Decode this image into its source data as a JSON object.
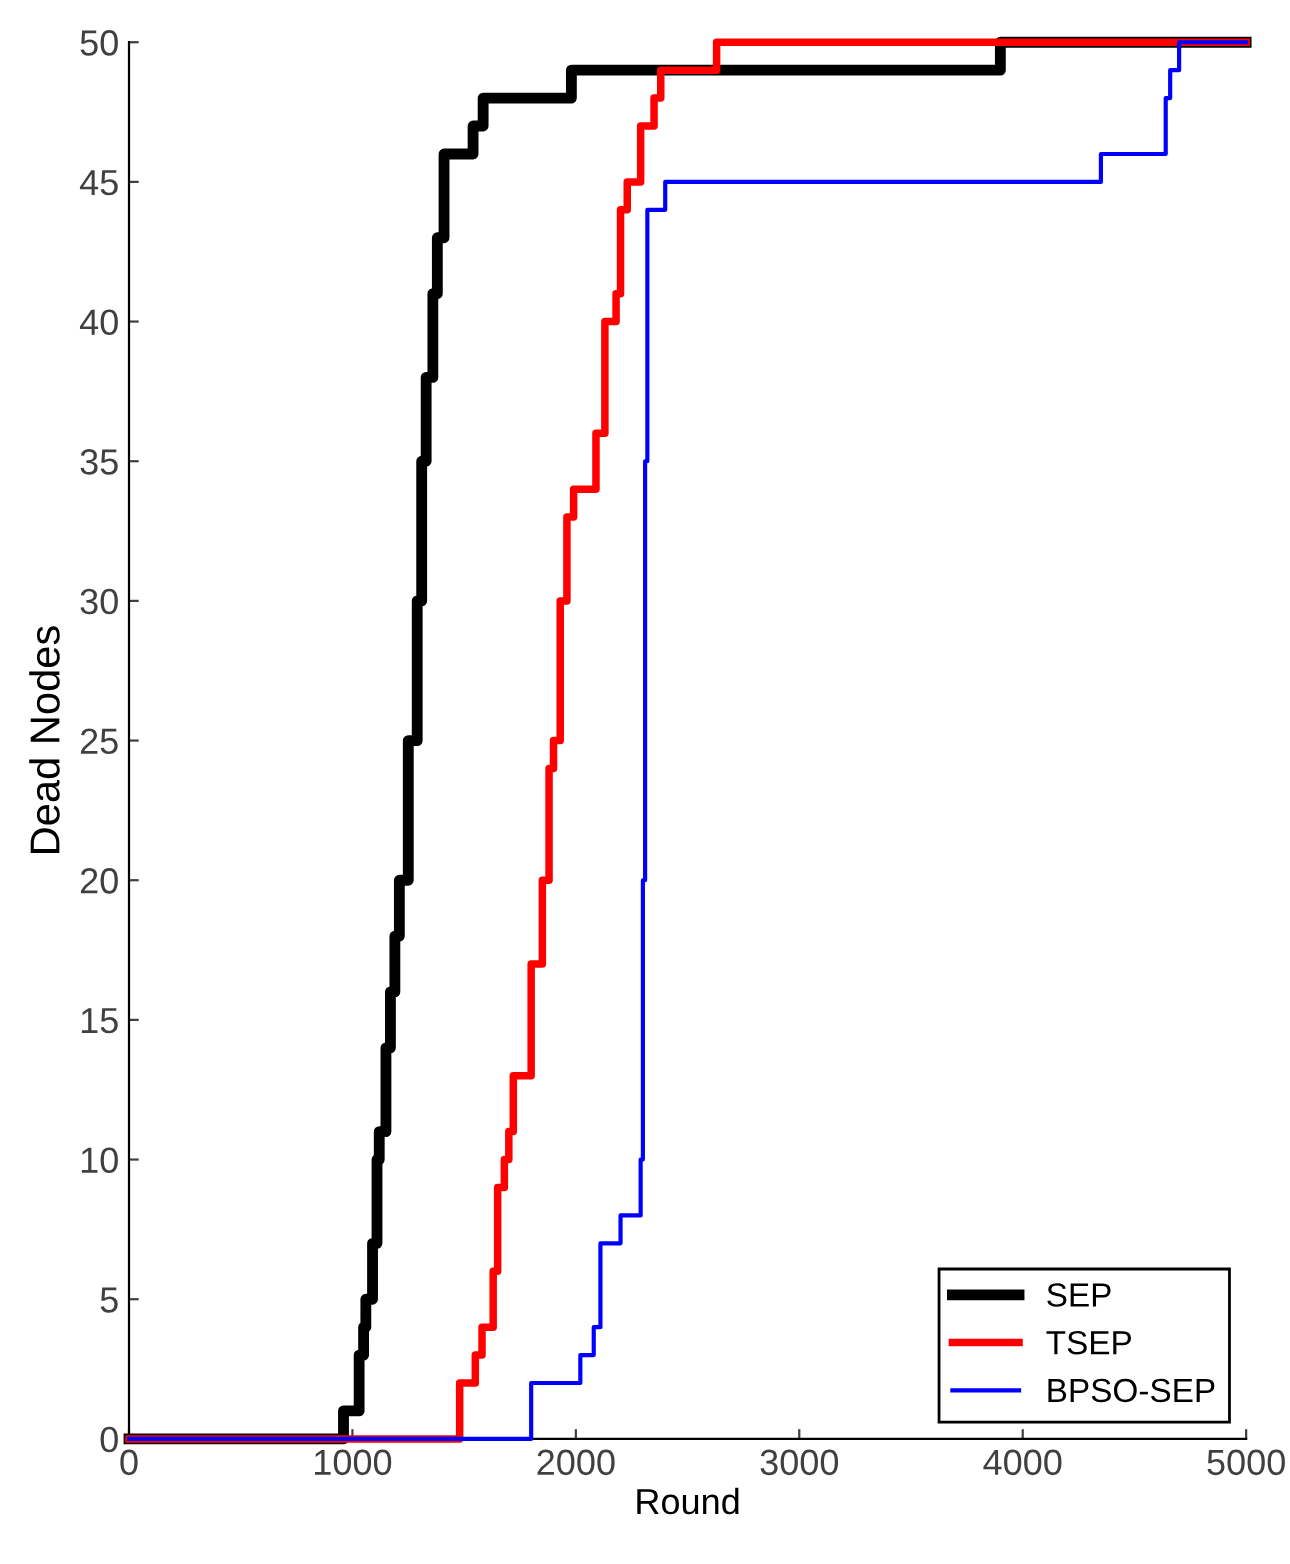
{
  "chart_data": {
    "type": "step",
    "xlabel": "Round",
    "ylabel": "Dead Nodes",
    "xlim": [
      0,
      5000
    ],
    "ylim": [
      0,
      50
    ],
    "xticks": [
      0,
      1000,
      2000,
      3000,
      4000,
      5000
    ],
    "yticks": [
      0,
      5,
      10,
      15,
      20,
      25,
      30,
      35,
      40,
      45,
      50
    ],
    "grid": false,
    "legend": "bottom right",
    "marker": "none",
    "line_style": "solid",
    "series": [
      {
        "name": "SEP",
        "color": "#000000",
        "x": [
          0,
          960,
          1030,
          1050,
          1060,
          1090,
          1110,
          1120,
          1150,
          1170,
          1190,
          1210,
          1250,
          1290,
          1310,
          1330,
          1360,
          1380,
          1410,
          1540,
          1585,
          1980,
          3900,
          5000
        ],
        "values": [
          0,
          1,
          3,
          4,
          5,
          7,
          10,
          11,
          14,
          16,
          18,
          20,
          25,
          30,
          35,
          38,
          41,
          43,
          46,
          47,
          48,
          49,
          50,
          50
        ]
      },
      {
        "name": "TSEP",
        "color": "#ff0000",
        "x": [
          0,
          1480,
          1550,
          1580,
          1630,
          1650,
          1680,
          1700,
          1720,
          1800,
          1850,
          1880,
          1900,
          1930,
          1960,
          1990,
          2090,
          2130,
          2180,
          2200,
          2230,
          2290,
          2350,
          2380,
          2630,
          5000
        ],
        "values": [
          0,
          2,
          3,
          4,
          6,
          9,
          10,
          11,
          13,
          17,
          20,
          24,
          25,
          30,
          33,
          34,
          36,
          40,
          41,
          44,
          45,
          47,
          48,
          49,
          50,
          50
        ]
      },
      {
        "name": "BPSO-SEP",
        "color": "#0000ff",
        "x": [
          0,
          1800,
          2020,
          2080,
          2110,
          2200,
          2290,
          2300,
          2310,
          2320,
          2400,
          4350,
          4640,
          4660,
          4700,
          5000
        ],
        "values": [
          0,
          2,
          3,
          4,
          7,
          8,
          10,
          20,
          35,
          44,
          45,
          46,
          48,
          49,
          50,
          50
        ]
      }
    ]
  }
}
